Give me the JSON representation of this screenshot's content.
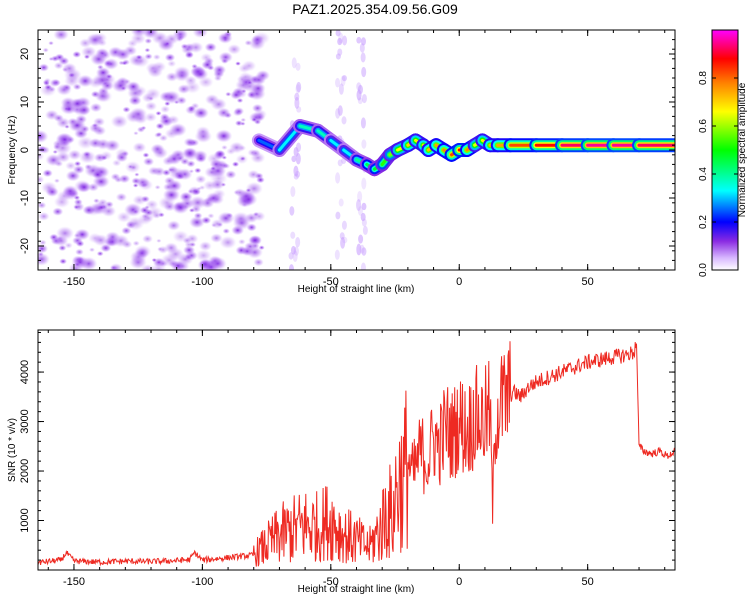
{
  "title": "PAZ1.2025.354.09.56.G09",
  "colors": {
    "snr_line": "#ee2a22",
    "heatmap_noise": "#8a2be2",
    "heatmap_peak": "#ff0000"
  },
  "chart_data": [
    {
      "type": "heatmap",
      "title": "",
      "xlabel": "Height of straight line (km)",
      "ylabel": "Frequency (Hz)",
      "xlim": [
        -164,
        84
      ],
      "ylim": [
        -25,
        25
      ],
      "x_ticks": [
        -150,
        -100,
        -50,
        0,
        50
      ],
      "x_tick_labels": [
        "-150",
        "-100",
        "-50",
        "0",
        "50"
      ],
      "y_ticks": [
        -20,
        -10,
        0,
        10,
        20
      ],
      "y_tick_labels": [
        "-20",
        "-10",
        "0",
        "10",
        "20"
      ],
      "colorbar": {
        "label": "Normalized spectral amplitude",
        "range": [
          0.0,
          1.0
        ],
        "ticks": [
          0.0,
          0.2,
          0.4,
          0.6,
          0.8
        ],
        "tick_labels": [
          "0.0",
          "0.2",
          "0.4",
          "0.6",
          "0.8"
        ],
        "colormap": [
          "#ffffff",
          "#d8b8ff",
          "#8a2be2",
          "#0000ff",
          "#00ffff",
          "#00ff00",
          "#ffff00",
          "#ff8000",
          "#ff0000",
          "#ff00ff"
        ]
      },
      "ridge": {
        "x": [
          -78,
          -70,
          -62,
          -55,
          -50,
          -45,
          -40,
          -36,
          -33,
          -30,
          -27,
          -24,
          -20,
          -17,
          -14,
          -12,
          -9,
          -6,
          -3,
          0,
          3,
          6,
          9,
          12,
          15,
          20,
          30,
          40,
          50,
          60,
          70,
          84
        ],
        "freq": [
          2,
          0,
          5,
          4,
          2,
          0,
          -2,
          -3,
          -4,
          -3,
          -1,
          0,
          1,
          2,
          1,
          0,
          1,
          0,
          -1,
          0,
          0,
          1,
          2,
          1,
          1,
          1,
          1,
          1,
          1,
          1,
          1,
          1
        ],
        "amplitude": [
          0.2,
          0.3,
          0.35,
          0.4,
          0.35,
          0.3,
          0.35,
          0.45,
          0.45,
          0.5,
          0.55,
          0.6,
          0.7,
          0.7,
          0.65,
          0.75,
          0.7,
          0.8,
          0.75,
          0.9,
          0.85,
          0.7,
          0.6,
          0.75,
          0.7,
          0.8,
          0.85,
          0.9,
          0.95,
          0.95,
          0.95,
          0.9
        ]
      }
    },
    {
      "type": "line",
      "title": "",
      "xlabel": "Height of straight line (km)",
      "ylabel": "SNR (10 * v/v)",
      "xlim": [
        -164,
        84
      ],
      "ylim": [
        0,
        4850
      ],
      "x_ticks": [
        -150,
        -100,
        -50,
        0,
        50
      ],
      "x_tick_labels": [
        "-150",
        "-100",
        "-50",
        "0",
        "50"
      ],
      "y_ticks": [
        1000,
        2000,
        3000,
        4000
      ],
      "y_tick_labels": [
        "1000",
        "2000",
        "3000",
        "4000"
      ],
      "series": [
        {
          "name": "SNR",
          "x": [
            -164,
            -155,
            -153,
            -150,
            -140,
            -130,
            -120,
            -110,
            -105,
            -103,
            -100,
            -90,
            -80,
            -75,
            -70,
            -65,
            -60,
            -55,
            -50,
            -45,
            -40,
            -35,
            -30,
            -28,
            -26,
            -24,
            -22,
            -20,
            -18,
            -15,
            -12,
            -10,
            -8,
            -5,
            -3,
            0,
            3,
            6,
            9,
            12,
            13,
            14,
            15,
            18,
            21,
            24,
            27,
            30,
            35,
            40,
            45,
            50,
            55,
            60,
            65,
            68,
            69,
            70,
            72,
            75,
            78,
            81,
            84
          ],
          "y": [
            150,
            200,
            350,
            180,
            160,
            180,
            170,
            190,
            210,
            350,
            200,
            250,
            300,
            500,
            700,
            800,
            900,
            850,
            1000,
            700,
            600,
            450,
            900,
            1300,
            1000,
            1800,
            1700,
            2200,
            1900,
            2400,
            2200,
            2700,
            2500,
            2900,
            2700,
            3000,
            2800,
            3100,
            3000,
            3200,
            1200,
            3000,
            3300,
            3400,
            3600,
            3500,
            3700,
            3800,
            3900,
            4000,
            4100,
            4200,
            4250,
            4300,
            4350,
            4400,
            4600,
            2500,
            2400,
            2350,
            2400,
            2300,
            2400
          ]
        }
      ]
    }
  ]
}
